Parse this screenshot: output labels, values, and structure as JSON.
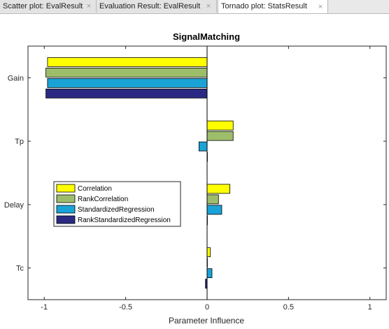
{
  "tabs": [
    {
      "label": "Scatter plot:  EvalResult",
      "active": false
    },
    {
      "label": "Evaluation Result:  EvalResult",
      "active": false
    },
    {
      "label": "Tornado plot:  StatsResult",
      "active": true
    }
  ],
  "tab_close_glyph": "×",
  "chart_data": {
    "type": "bar",
    "orientation": "horizontal",
    "title": "SignalMatching",
    "xlabel": "Parameter Influence",
    "ylabel": "",
    "xlim": [
      -1.1,
      1.1
    ],
    "x_ticks": [
      -1,
      -0.5,
      0,
      0.5,
      1
    ],
    "x_tick_labels": [
      "-1",
      "-0.5",
      "0",
      "0.5",
      "1"
    ],
    "categories": [
      "Gain",
      "Tp",
      "Delay",
      "Tc"
    ],
    "series": [
      {
        "name": "Correlation",
        "color": "#ffff00",
        "values": [
          -0.98,
          0.16,
          0.14,
          0.02
        ]
      },
      {
        "name": "RankCorrelation",
        "color": "#9dbd6b",
        "values": [
          -0.99,
          0.16,
          0.07,
          0.0
        ]
      },
      {
        "name": "StandardizedRegression",
        "color": "#1aa3d6",
        "values": [
          -0.98,
          -0.05,
          0.09,
          0.03
        ]
      },
      {
        "name": "RankStandardizedRegression",
        "color": "#2a2a84",
        "values": [
          -0.99,
          0.0,
          0.0,
          -0.01
        ]
      }
    ],
    "legend_position": "left-middle",
    "grid": false
  }
}
